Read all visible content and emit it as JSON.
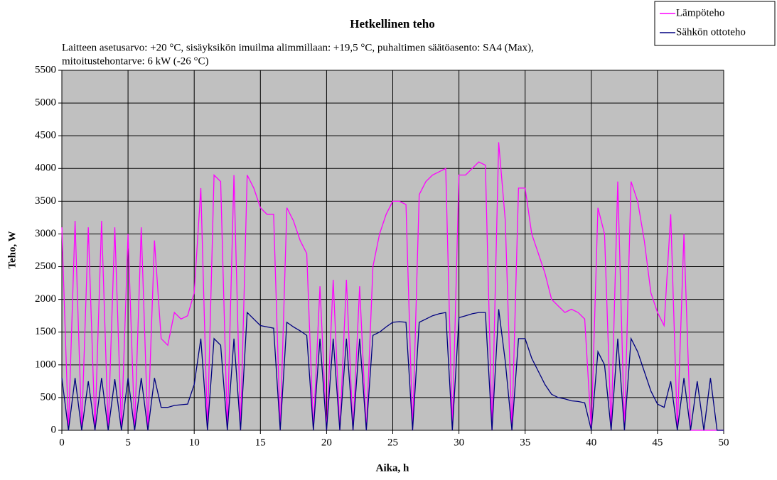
{
  "chart_data": {
    "type": "line",
    "title": "Hetkellinen teho",
    "subtitle": [
      "Laitteen asetusarvo: +20 °C, sisäyksikön imuilma alimmillaan: +19,5 °C, puhaltimen säätöasento: SA4 (Max),",
      "mitoitustehontarve: 6 kW (-26 °C)"
    ],
    "x_label": "Aika, h",
    "y_label": "Teho, W",
    "xlim": [
      0,
      50
    ],
    "xticks": [
      0,
      5,
      10,
      15,
      20,
      25,
      30,
      35,
      40,
      45,
      50
    ],
    "ylim": [
      0,
      5500
    ],
    "yticks": [
      0,
      500,
      1000,
      1500,
      2000,
      2500,
      3000,
      3500,
      4000,
      4500,
      5000,
      5500
    ],
    "grid": true,
    "legend": "top-right",
    "x": [
      0,
      0.5,
      1,
      1.5,
      2,
      2.5,
      3,
      3.5,
      4,
      4.5,
      5,
      5.5,
      6,
      6.5,
      7,
      7.5,
      8,
      8.5,
      9,
      9.5,
      10,
      10.5,
      11,
      11.5,
      12,
      12.5,
      13,
      13.5,
      14,
      14.5,
      15,
      15.5,
      16,
      16.5,
      17,
      17.5,
      18,
      18.5,
      19,
      19.5,
      20,
      20.5,
      21,
      21.5,
      22,
      22.5,
      23,
      23.5,
      24,
      24.5,
      25,
      25.5,
      26,
      26.5,
      27,
      27.5,
      28,
      28.5,
      29,
      29.5,
      30,
      30.5,
      31,
      31.5,
      32,
      32.5,
      33,
      33.5,
      34,
      34.5,
      35,
      35.5,
      36,
      36.5,
      37,
      37.5,
      38,
      38.5,
      39,
      39.5,
      40,
      40.5,
      41,
      41.5,
      42,
      42.5,
      43,
      43.5,
      44,
      44.5,
      45,
      45.5,
      46,
      46.5,
      47,
      47.5,
      48,
      48.5,
      49,
      49.5,
      50
    ],
    "series": [
      {
        "name": "Lämpöteho",
        "color": "#ff00ff",
        "values": [
          3100,
          0,
          3200,
          0,
          3100,
          0,
          3200,
          0,
          3100,
          0,
          3000,
          0,
          3100,
          0,
          2900,
          1400,
          1300,
          1800,
          1700,
          1750,
          2100,
          3700,
          0,
          3900,
          3800,
          0,
          3900,
          0,
          3900,
          3700,
          3400,
          3300,
          3300,
          0,
          3400,
          3200,
          2900,
          2700,
          0,
          2200,
          0,
          2300,
          0,
          2300,
          0,
          2200,
          0,
          2500,
          3000,
          3300,
          3500,
          3500,
          3450,
          0,
          3600,
          3800,
          3900,
          3950,
          4000,
          0,
          3900,
          3900,
          4000,
          4100,
          4050,
          0,
          4400,
          3200,
          0,
          3700,
          3700,
          3000,
          2700,
          2400,
          2000,
          1900,
          1800,
          1850,
          1800,
          1700,
          0,
          3400,
          3000,
          0,
          3800,
          0,
          3800,
          3500,
          2900,
          2100,
          1800,
          1600,
          3300,
          0,
          3000,
          0,
          0,
          0,
          0,
          0,
          0
        ]
      },
      {
        "name": "Sähkön ottoteho",
        "color": "#000080",
        "values": [
          800,
          0,
          800,
          0,
          750,
          0,
          800,
          0,
          780,
          0,
          800,
          0,
          800,
          0,
          800,
          350,
          350,
          380,
          390,
          400,
          700,
          1400,
          0,
          1400,
          1300,
          0,
          1400,
          0,
          1800,
          1700,
          1600,
          1580,
          1560,
          0,
          1650,
          1580,
          1520,
          1450,
          0,
          1400,
          0,
          1400,
          0,
          1400,
          0,
          1400,
          0,
          1450,
          1500,
          1580,
          1650,
          1660,
          1650,
          0,
          1650,
          1700,
          1750,
          1780,
          1800,
          0,
          1720,
          1750,
          1780,
          1800,
          1800,
          0,
          1850,
          1050,
          0,
          1400,
          1400,
          1100,
          900,
          700,
          550,
          500,
          480,
          450,
          440,
          420,
          0,
          1200,
          1000,
          0,
          1400,
          0,
          1400,
          1200,
          900,
          600,
          400,
          350,
          750,
          0,
          800,
          0,
          750,
          0,
          800,
          0,
          0
        ]
      }
    ]
  }
}
